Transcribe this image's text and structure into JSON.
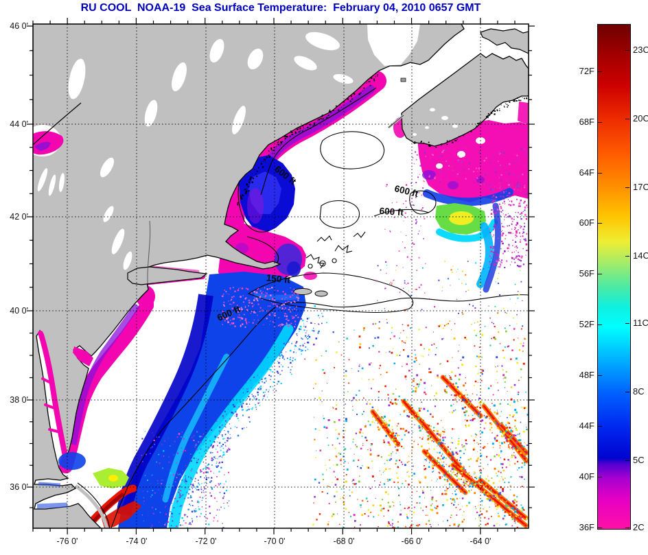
{
  "title": "RU COOL  NOAA-19  Sea Surface Temperature:  February 04, 2010 0657 GMT",
  "map": {
    "title_color": "#0000bb",
    "land_color": "#c0c0c0",
    "no_data_color": "#ffffff",
    "lat_labels": [
      "46 0'",
      "44 0'",
      "42 0'",
      "40 0'",
      "38 0'",
      "36 0'"
    ],
    "lon_labels": [
      "-76 0'",
      "-74 0'",
      "-72 0'",
      "-70 0'",
      "-68 0'",
      "-66 0'",
      "-64 0'"
    ],
    "contour_labels": [
      {
        "text": "600 ft"
      },
      {
        "text": "600 ft"
      },
      {
        "text": "600 ft"
      },
      {
        "text": "150 ft"
      },
      {
        "text": "600 ft"
      }
    ],
    "speckle_palettes": {
      "warm": [
        "#ee2200",
        "#ff7700",
        "#ffcc00",
        "#eeee22",
        "#88cc33",
        "#33ccbb",
        "#00aaee",
        "#3355dd",
        "#9933cc",
        "#dd33aa"
      ],
      "cool": [
        "#00d8ff",
        "#2a8aee",
        "#2244dd",
        "#7744cc"
      ],
      "pink": [
        "#ff3fbb",
        "#d04fcc",
        "#f080dd",
        "#ff77cc"
      ],
      "magenta": [
        "#ee22aa",
        "#b033cc",
        "#ff55cc",
        "#8833cc"
      ]
    }
  },
  "colorbar": {
    "f_labels": [
      "72F",
      "68F",
      "64F",
      "60F",
      "56F",
      "52F",
      "48F",
      "44F",
      "40F",
      "36F"
    ],
    "c_labels": [
      "23C",
      "20C",
      "17C",
      "14C",
      "11C",
      "8C",
      "5C",
      "2C"
    ],
    "gradient_stops": [
      {
        "p": 0,
        "c": "#6f0000"
      },
      {
        "p": 4,
        "c": "#900000"
      },
      {
        "p": 6,
        "c": "#a40000"
      },
      {
        "p": 12,
        "c": "#cc0000"
      },
      {
        "p": 19,
        "c": "#ee2e00"
      },
      {
        "p": 26,
        "c": "#ff5e00"
      },
      {
        "p": 32,
        "c": "#ff8e00"
      },
      {
        "p": 38,
        "c": "#ffc400"
      },
      {
        "p": 43,
        "c": "#eeee33"
      },
      {
        "p": 47,
        "c": "#a8ec66"
      },
      {
        "p": 52,
        "c": "#4ce9a4"
      },
      {
        "p": 56,
        "c": "#0ff0e0"
      },
      {
        "p": 60,
        "c": "#00ffff"
      },
      {
        "p": 67,
        "c": "#00aaff"
      },
      {
        "p": 73,
        "c": "#0062ff"
      },
      {
        "p": 80,
        "c": "#0026ee"
      },
      {
        "p": 86,
        "c": "#0004cf"
      },
      {
        "p": 87,
        "c": "#4c00cf"
      },
      {
        "p": 90,
        "c": "#a800d0"
      },
      {
        "p": 94,
        "c": "#e400c4"
      },
      {
        "p": 100,
        "c": "#ff10a6"
      }
    ]
  },
  "chart_data": {
    "type": "heatmap",
    "title": "RU COOL  NOAA-19  Sea Surface Temperature:  February 04, 2010 0657 GMT",
    "xlabel_ticks": [
      "-76 0'",
      "-74 0'",
      "-72 0'",
      "-70 0'",
      "-68 0'",
      "-66 0'",
      "-64 0'"
    ],
    "ylabel_ticks": [
      "46 0'",
      "44 0'",
      "42 0'",
      "40 0'",
      "38 0'",
      "36 0'"
    ],
    "colorbar_scale_f": [
      72,
      68,
      64,
      60,
      56,
      52,
      48,
      44,
      40,
      36
    ],
    "colorbar_scale_c": [
      23,
      20,
      17,
      14,
      11,
      8,
      5,
      2
    ],
    "legend_position": "right",
    "grid": "dotted",
    "annotations": [
      "600 ft",
      "600 ft",
      "600 ft",
      "150 ft",
      "600 ft"
    ],
    "features": [
      "gray land: northeastern US, New Brunswick, Nova Scotia, Cape Breton",
      "white: cloud / no data over Gulf of Maine and offshore",
      "cold magenta (2-4C) water hugging coast from Gulf of Maine to Chesapeake Bay and Lake Ontario",
      "blue/cyan (5-11C) mid-shelf cold pool from Long Island to Cape Hatteras",
      "green/yellow (13-16C) warm patch east of Nova Scotia",
      "red/dark-red (20-24C) Gulf Stream filament near Cape Hatteras",
      "scattered warm eddy speckles (orange/red streaks) in the lower-right open ocean"
    ]
  }
}
